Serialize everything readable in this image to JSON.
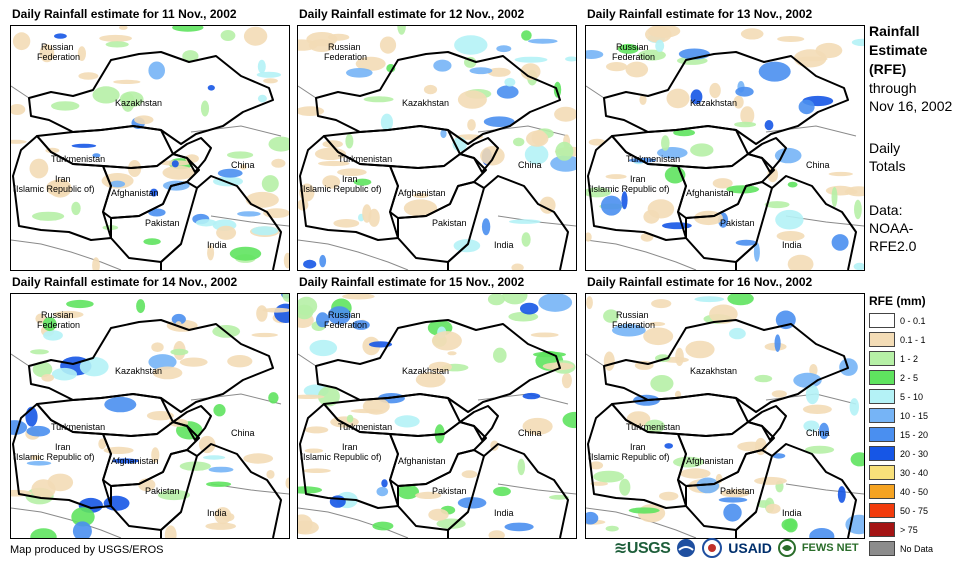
{
  "panels": [
    {
      "title": "Daily Rainfall estimate for 11 Nov., 2002"
    },
    {
      "title": "Daily Rainfall estimate for 12 Nov., 2002"
    },
    {
      "title": "Daily Rainfall estimate for 13 Nov., 2002"
    },
    {
      "title": "Daily Rainfall estimate for 14 Nov., 2002"
    },
    {
      "title": "Daily Rainfall estimate for 15 Nov., 2002"
    },
    {
      "title": "Daily Rainfall estimate for 16 Nov., 2002"
    }
  ],
  "countries": {
    "russia_1": "Russian",
    "russia_2": "Federation",
    "kazakhstan": "Kazakhstan",
    "turkmenistan": "Turkmenistan",
    "china": "China",
    "iran_1": "Iran",
    "iran_2": "(Islamic Republic of)",
    "afghanistan": "Afghanistan",
    "pakistan": "Pakistan",
    "india": "India"
  },
  "side": {
    "rfe_1": "Rainfall",
    "rfe_2": "Estimate",
    "rfe_3": "(RFE)",
    "through_1": "through",
    "through_2": "Nov 16, 2002",
    "totals_1": "Daily",
    "totals_2": "Totals",
    "data_1": "Data:",
    "data_2": "NOAA-",
    "data_3": "RFE2.0"
  },
  "legend": {
    "title": "RFE (mm)",
    "items": [
      {
        "label": "0 - 0.1",
        "color": "#ffffff"
      },
      {
        "label": "0.1 - 1",
        "color": "#f3dcb6"
      },
      {
        "label": "1 - 2",
        "color": "#b6f0a6"
      },
      {
        "label": "2 - 5",
        "color": "#5fe35f"
      },
      {
        "label": "5 - 10",
        "color": "#b4f2f6"
      },
      {
        "label": "10 - 15",
        "color": "#76b4f6"
      },
      {
        "label": "15 - 20",
        "color": "#4a8ff0"
      },
      {
        "label": "20 - 30",
        "color": "#1656e6"
      },
      {
        "label": "30 - 40",
        "color": "#f8e07a"
      },
      {
        "label": "40 - 50",
        "color": "#f5a322"
      },
      {
        "label": "50 - 75",
        "color": "#f23b0c"
      },
      {
        "label": "> 75",
        "color": "#a41414"
      },
      {
        "label": "No Data",
        "color": "#8c8c8c"
      }
    ]
  },
  "footer": {
    "credit": "Map produced by USGS/EROS"
  },
  "logos": {
    "usgs": "≋USGS",
    "usaid": "USAID",
    "fews": "FEWS NET"
  }
}
